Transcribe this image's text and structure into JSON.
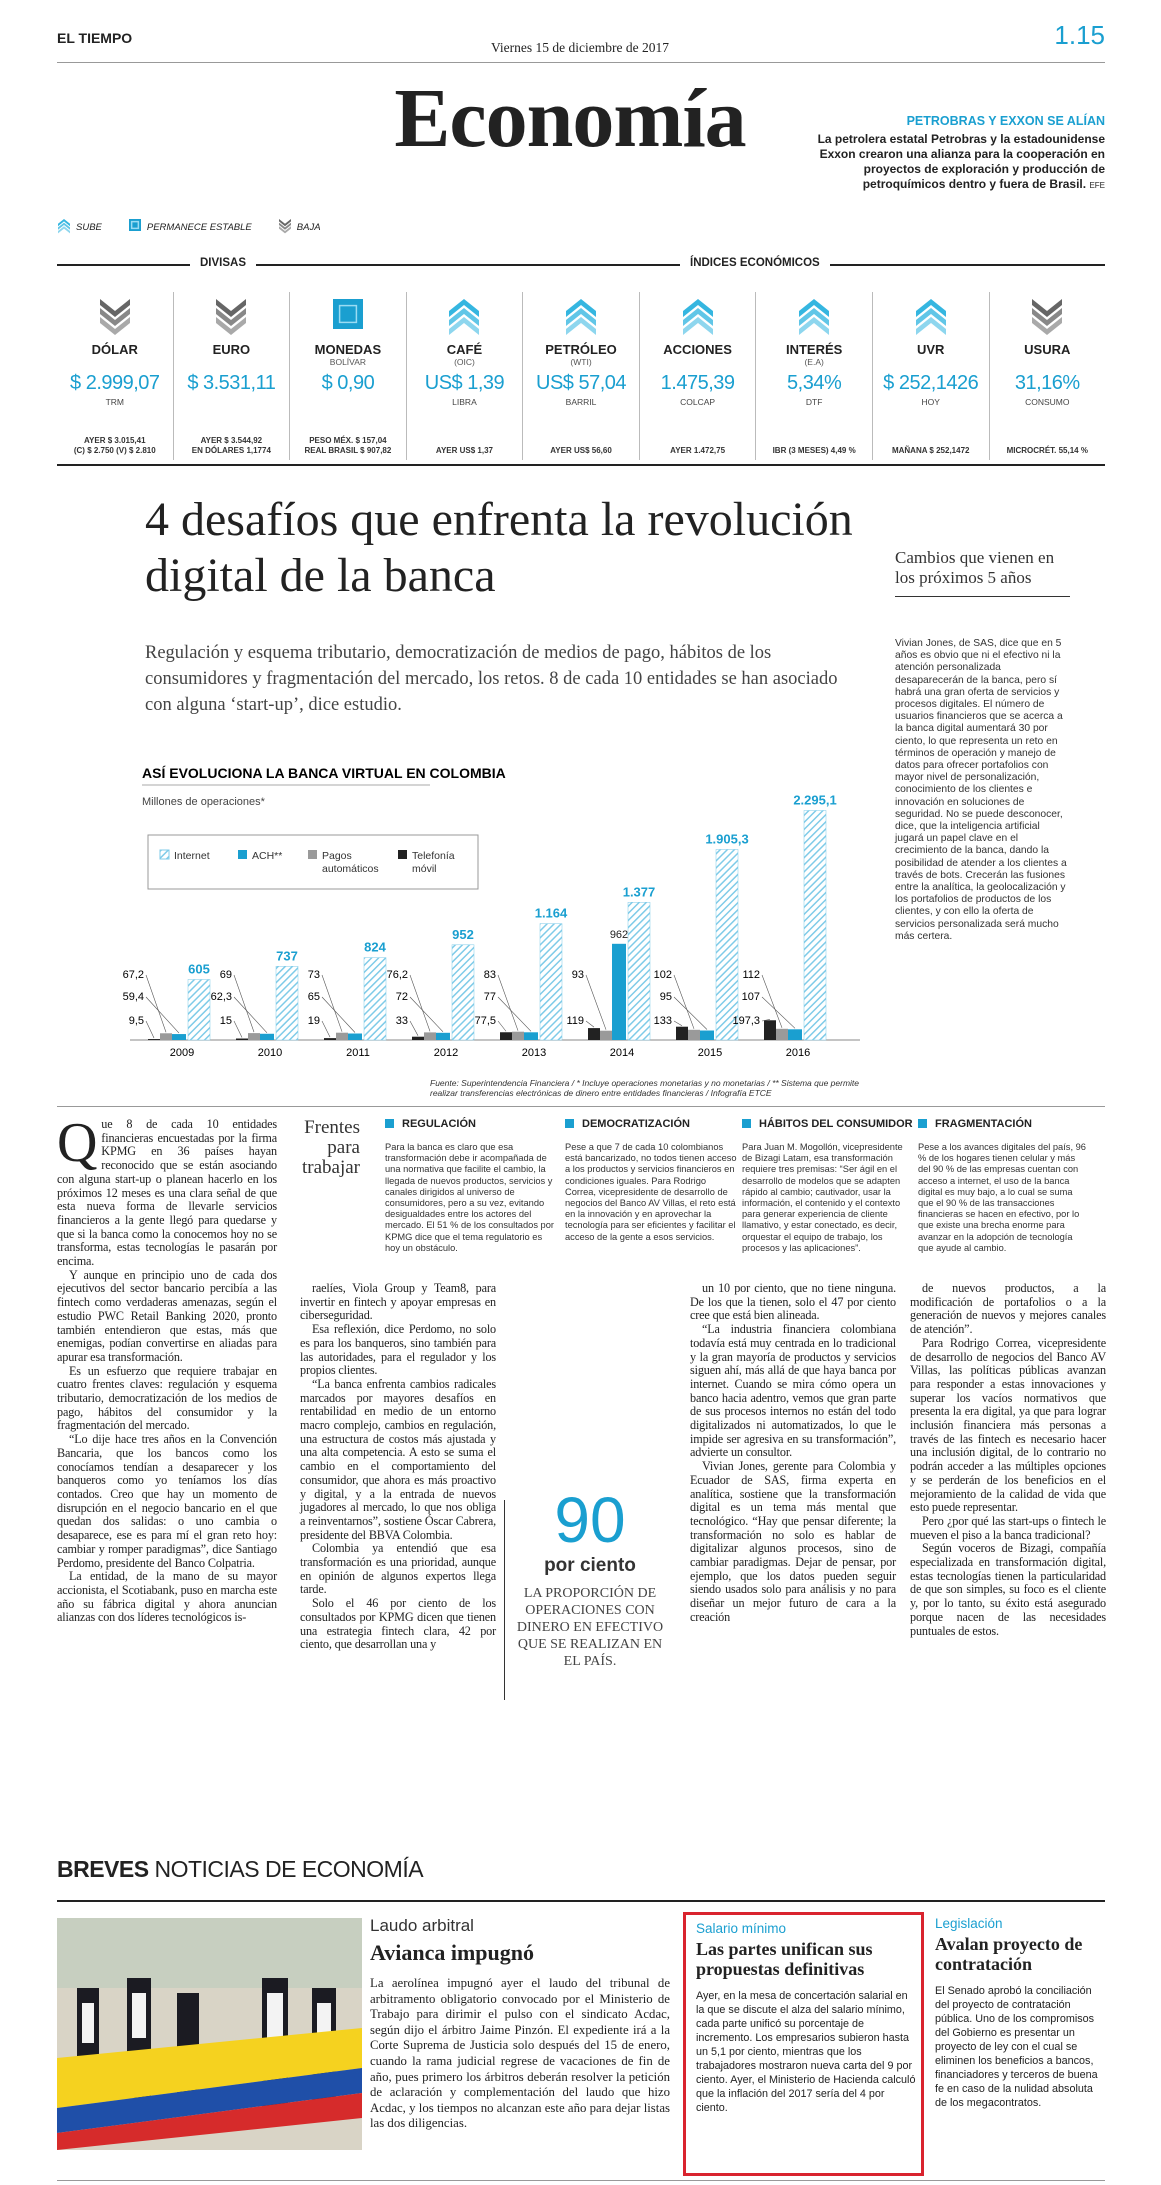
{
  "header": {
    "brand": "EL TIEMPO",
    "date": "Viernes 15 de diciembre de 2017",
    "page": "1.15",
    "section": "Economía"
  },
  "feature": {
    "kicker": "PETROBRAS Y EXXON SE ALÍAN",
    "text": "La petrolera estatal Petrobras y la estadounidense Exxon crearon una alianza para la cooperación en proyectos de exploración y producción de petroquímicos dentro y fuera de Brasil.",
    "credit": "EFE"
  },
  "legend": [
    {
      "label": "SUBE",
      "trend": "up"
    },
    {
      "label": "PERMANECE ESTABLE",
      "trend": "stable"
    },
    {
      "label": "BAJA",
      "trend": "down"
    }
  ],
  "indicator_groups": [
    "DIVISAS",
    "ÍNDICES ECONÓMICOS"
  ],
  "indicators": [
    {
      "name": "DÓLAR",
      "value": "$ 2.999,07",
      "unit": "TRM",
      "details": [
        "AYER $ 3.015,41",
        "(C) $ 2.750 (V) $ 2.810"
      ],
      "trend": "down"
    },
    {
      "name": "EURO",
      "value": "$ 3.531,11",
      "details": [
        "AYER $ 3.544,92",
        "EN DÓLARES 1,1774"
      ],
      "trend": "down"
    },
    {
      "name": "MONEDAS",
      "note": "BOLÍVAR",
      "value": "$ 0,90",
      "details": [
        "PESO MÉX. $ 157,04",
        "REAL BRASIL $ 907,82"
      ],
      "trend": "stable"
    },
    {
      "name": "CAFÉ",
      "note": "(OIC)",
      "value": "US$ 1,39",
      "unit": "LIBRA",
      "details": [
        "AYER US$ 1,37"
      ],
      "trend": "up"
    },
    {
      "name": "PETRÓLEO",
      "note": "(WTI)",
      "value": "US$ 57,04",
      "unit": "BARRIL",
      "details": [
        "AYER US$ 56,60"
      ],
      "trend": "up"
    },
    {
      "name": "ACCIONES",
      "value": "1.475,39",
      "unit": "COLCAP",
      "details": [
        "AYER 1.472,75"
      ],
      "trend": "up"
    },
    {
      "name": "INTERÉS",
      "note": "(E.A)",
      "value": "5,34%",
      "unit": "DTF",
      "details": [
        "IBR (3 MESES) 4,49 %"
      ],
      "trend": "up"
    },
    {
      "name": "UVR",
      "value": "$ 252,1426",
      "unit": "HOY",
      "details": [
        "MAÑANA $ 252,1472"
      ],
      "trend": "up"
    },
    {
      "name": "USURA",
      "value": "31,16%",
      "unit": "CONSUMO",
      "details": [
        "MICROCRÉT. 55,14 %"
      ],
      "trend": "down"
    }
  ],
  "article": {
    "headline": "4 desafíos que enfrenta la revolución digital de la banca",
    "subhead": "Regulación y esquema tributario, democratización de medios de pago, hábitos de los consumidores y fragmentación del mercado, los retos. 8 de cada 10 entidades se han asociado con alguna ‘start-up’, dice estudio.",
    "sidebar": {
      "title": "Cambios que vienen en los próximos 5 años",
      "text": "Vivian Jones, de SAS, dice que en 5 años es obvio que ni el efectivo ni la atención personalizada desaparecerán de la banca, pero sí habrá una gran oferta de servicios y procesos digitales. El número de usuarios financieros que se acerca a la banca digital aumentará 30 por ciento, lo que representa un reto en términos de operación y manejo de datos para ofrecer portafolios con mayor nivel de personalización, conocimiento de los clientes e innovación en soluciones de seguridad. No se puede desconocer, dice, que la inteligencia artificial jugará un papel clave en el crecimiento de la banca, dando la posibilidad de atender a los clientes a través de bots. Crecerán las fusiones entre la analítica, la geolocalización y los portafolios de productos de los clientes, y con ello la oferta de servicios personalizada será mucho más certera."
    },
    "fronts": {
      "title": "Frentes para trabajar",
      "items": [
        {
          "heading": "REGULACIÓN",
          "text": "Para la banca es claro que esa transformación debe ir acompañada de una normativa que facilite el cambio, la llegada de nuevos productos, servicios y canales dirigidos al universo de consumidores, pero a su vez, evitando desigualdades entre los actores del mercado. El 51 % de los consultados por KPMG dice que el tema regulatorio es hoy un obstáculo."
        },
        {
          "heading": "DEMOCRATIZACIÓN",
          "text": "Pese a que 7 de cada 10 colombianos está bancarizado, no todos tienen acceso a los productos y servicios financieros en condiciones iguales. Para Rodrigo Correa, vicepresidente de desarrollo de negocios del Banco AV Villas, el reto está en la innovación y en aprovechar la tecnología para ser eficientes y facilitar el acceso de la gente a esos servicios."
        },
        {
          "heading": "HÁBITOS DEL CONSUMIDOR",
          "text": "Para Juan M. Mogollón, vicepresidente de Bizagi Latam, esa transformación requiere tres premisas: “Ser ágil en el desarrollo de modelos que se adapten rápido al cambio; cautivador, usar la información, el contenido y el contexto para generar experiencia de cliente llamativo, y estar conectado, es decir, orquestar el equipo de trabajo, los procesos y las aplicaciones”."
        },
        {
          "heading": "FRAGMENTACIÓN",
          "text": "Pese a los avances digitales del país, 96 % de los hogares tienen celular y más del 90 % de las empresas cuentan con acceso a internet, el uso de la banca digital es muy bajo, a lo cual se suma que el 90 % de las transacciones financieras se hacen en efectivo, por lo que existe una brecha enorme para avanzar en la adopción de tecnología que ayude al cambio."
        }
      ]
    },
    "pull": {
      "number": "90",
      "unit": "por ciento",
      "caption": "LA PROPORCIÓN DE OPERACIONES CON DINERO EN EFECTIVO QUE SE REALIZAN EN EL PAÍS."
    },
    "body": [
      [
        "Que 8 de cada 10 entidades financieras encuestadas por la firma KPMG en 36 países hayan reconocido que se están asociando con alguna start-up o planean hacerlo en los próximos 12 meses es una clara señal de que esta nueva forma de llevarle servicios financieros a la gente llegó para quedarse y que si la banca como la conocemos hoy no se transforma, estas tecnologías le pasarán por encima.",
        "Y aunque en principio uno de cada dos ejecutivos del sector bancario percibía a las fintech como verdaderas amenazas, según el estudio PWC Retail Banking 2020, pronto también entendieron que estas, más que enemigas, podían convertirse en aliadas para apurar esa transformación.",
        "Es un esfuerzo que requiere trabajar en cuatro frentes claves: regulación y esquema tributario, democratización de los medios de pago, hábitos del consumidor y la fragmentación del mercado.",
        "“Lo dije hace tres años en la Convención Bancaria, que los bancos como los conocíamos tendían a desaparecer y los banqueros como yo teníamos los días contados. Creo que hay un momento de disrupción en el negocio bancario en el que quedan dos salidas: o uno cambia o desaparece, ese es para mí el gran reto hoy: cambiar y romper paradigmas”, dice Santiago Perdomo, presidente del Banco Colpatria.",
        "La entidad, de la mano de su mayor accionista, el Scotiabank, puso en marcha este año su fábrica digital y ahora anuncian alianzas con dos líderes tecnológicos is-"
      ],
      [
        "raelíes, Viola Group y Team8, para invertir en fintech y apoyar empresas en ciberseguridad.",
        "Esa reflexión, dice Perdomo, no solo es para los banqueros, sino también para las autoridades, para el regulador y los propios clientes.",
        "“La banca enfrenta cambios radicales marcados por mayores desafíos en rentabilidad en medio de un entorno macro complejo, cambios en regulación, una estructura de costos más ajustada y una alta competencia. A esto se suma el cambio en el comportamiento del consumidor, que ahora es más proactivo y digital, y a la entrada de nuevos jugadores al mercado, lo que nos obliga a reinventarnos”, sostiene Óscar Cabrera, presidente del BBVA Colombia.",
        "Colombia ya entendió que esa transformación es una prioridad, aunque en opinión de algunos expertos llega tarde.",
        "Solo el 46 por ciento de los consultados por KPMG dicen que tienen una estrategia fintech clara, 42 por ciento, que desarrollan una y"
      ],
      [
        "un 10 por ciento, que no tiene ninguna. De los que la tienen, solo el 47 por ciento cree que está bien alineada.",
        "“La industria financiera colombiana todavía está muy centrada en lo tradicional y la gran mayoría de productos y servicios siguen ahí, más allá de que haya banca por internet. Cuando se mira cómo opera un banco hacia adentro, vemos que gran parte de sus procesos internos no están del todo digitalizados ni automatizados, lo que le impide ser agresiva en su transformación”, advierte un consultor.",
        "Vivian Jones, gerente para Colombia y Ecuador de SAS, firma experta en analítica, sostiene que la transformación digital es un tema más mental que tecnológico. “Hay que pensar diferente; la transformación no solo es hablar de digitalizar algunos procesos, sino de cambiar paradigmas. Dejar de pensar, por ejemplo, que los datos pueden seguir siendo usados solo para análisis y no para diseñar un mejor futuro de cara a la creación"
      ],
      [
        "de nuevos productos, a la modificación de portafolios o a la generación de nuevos y mejores canales de atención”.",
        "Para Rodrigo Correa, vicepresidente de desarrollo de negocios del Banco AV Villas, las políticas públicas avanzan para responder a estas innovaciones y superar los vacíos normativos que presenta la era digital, ya que para lograr inclusión financiera más personas a través de las fintech es necesario hacer una inclusión digital, de lo contrario no podrán acceder a las múltiples opciones y se perderán de los beneficios en el mejoramiento de la calidad de vida que esto puede representar.",
        "Pero ¿por qué las start-ups o fintech le mueven el piso a la banca tradicional?",
        "Según voceros de Bizagi, compañía especializada en transformación digital, estas tecnologías tienen la particularidad de que son simples, su foco es el cliente y, por lo tanto, su éxito está asegurado porque nacen de las necesidades puntuales de estos."
      ]
    ]
  },
  "chart_data": {
    "type": "bar",
    "title": "ASÍ EVOLUCIONA LA BANCA VIRTUAL EN COLOMBIA",
    "subtitle": "Millones de operaciones*",
    "categories": [
      "2009",
      "2010",
      "2011",
      "2012",
      "2013",
      "2014",
      "2015",
      "2016"
    ],
    "series": [
      {
        "name": "Internet",
        "color": "#7fcbe8",
        "hatch": true,
        "values": [
          605,
          737,
          824,
          952,
          1164,
          1377,
          1905.3,
          2295.1
        ],
        "value_labels": [
          "605",
          "737",
          "824",
          "952",
          "1.164",
          "1.377",
          "1.905,3",
          "2.295,1"
        ]
      },
      {
        "name": "ACH**",
        "color": "#1a9fd0",
        "values": [
          59.4,
          62.3,
          65,
          72,
          77,
          962,
          95,
          107
        ],
        "value_labels": [
          "59,4",
          "62,3",
          "65",
          "72",
          "77",
          "962",
          "95",
          "107"
        ]
      },
      {
        "name": "Pagos automáticos",
        "color": "#9a9a9a",
        "values": [
          67.2,
          69,
          73,
          76.2,
          83,
          93,
          102,
          112
        ],
        "value_labels": [
          "67,2",
          "69",
          "73",
          "76,2",
          "83",
          "93",
          "102",
          "112"
        ]
      },
      {
        "name": "Telefonía móvil",
        "color": "#222222",
        "values": [
          9.5,
          15,
          19,
          33,
          77.5,
          119,
          133,
          197.3
        ],
        "value_labels": [
          "9,5",
          "15",
          "19",
          "33",
          "77,5",
          "119",
          "133",
          "197,3"
        ]
      }
    ],
    "source": "Fuente: Superintendencia Financiera / * Incluye operaciones monetarias y no monetarias / ** Sistema que permite realizar transferencias electrónicas de dinero entre entidades financieras / Infografía ETCE"
  },
  "breves": {
    "label": "BREVES",
    "title": "NOTICIAS DE ECONOMÍA",
    "stories": [
      {
        "kicker": "Laudo arbitral",
        "headline": "Avianca impugnó",
        "text": "La aerolínea impugnó ayer el laudo del tribunal de arbitramento obligatorio convocado por el Ministerio de Trabajo para dirimir el pulso con el sindicato Acdac, según dijo el árbitro Jaime Pinzón. El expediente irá a la Corte Suprema de Justicia solo después del 15 de enero, cuando la rama judicial regrese de vacaciones de fin de año, pues primero los árbitros deberán resolver la petición de aclaración y complementación del laudo que hizo Acdac, y los tiempos no alcanzan este año para dejar listas las dos diligencias."
      },
      {
        "kicker": "Salario mínimo",
        "headline": "Las partes unifican sus propuestas definitivas",
        "text": "Ayer, en la mesa de concertación salarial en la que se discute el alza del salario mínimo, cada parte unificó su porcentaje de incremento. Los empresarios subieron hasta un 5,1 por ciento, mientras que los trabajadores mostraron nueva carta del 9 por ciento. Ayer, el Ministerio de Hacienda calculó que la inflación del 2017 sería del 4 por ciento."
      },
      {
        "kicker": "Legislación",
        "headline": "Avalan proyecto de contratación",
        "text": "El Senado aprobó la conciliación del proyecto de contratación pública. Uno de los compromisos del Gobierno es presentar un proyecto de ley con el cual se eliminen los beneficios a bancos, financiadores y terceros de buena fe en caso de la nulidad absoluta de los megacontratos."
      }
    ]
  }
}
